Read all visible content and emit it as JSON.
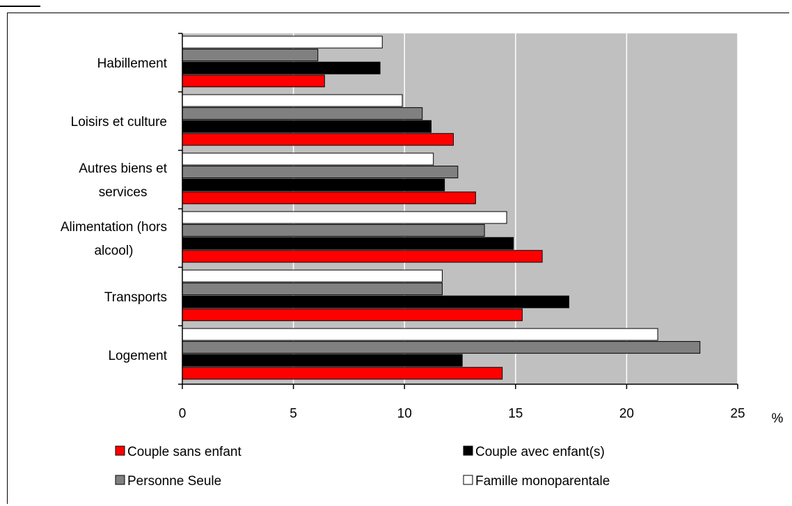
{
  "chart_data": {
    "type": "bar",
    "orientation": "horizontal",
    "categories": [
      "Habillement",
      "Loisirs et culture",
      "Autres biens et services",
      "Alimentation (hors alcool)",
      "Transports",
      "Logement"
    ],
    "category_lines": [
      [
        "Habillement"
      ],
      [
        "Loisirs et culture"
      ],
      [
        "Autres biens et",
        "services"
      ],
      [
        "Alimentation (hors",
        "alcool)"
      ],
      [
        "Transports"
      ],
      [
        "Logement"
      ]
    ],
    "series": [
      {
        "name": "Famille monoparentale",
        "color": "#ffffff",
        "values": [
          9.0,
          9.9,
          11.3,
          14.6,
          11.7,
          21.4
        ]
      },
      {
        "name": "Personne Seule",
        "color": "#808080",
        "values": [
          6.1,
          10.8,
          12.4,
          13.6,
          11.7,
          23.3
        ]
      },
      {
        "name": "Couple avec enfant(s)",
        "color": "#000000",
        "values": [
          8.9,
          11.2,
          11.8,
          14.9,
          17.4,
          12.6
        ]
      },
      {
        "name": "Couple sans enfant",
        "color": "#ff0000",
        "values": [
          6.4,
          12.2,
          13.2,
          16.2,
          15.3,
          14.4
        ]
      }
    ],
    "xlim": [
      0,
      25
    ],
    "xticks": [
      0,
      5,
      10,
      15,
      20,
      25
    ],
    "xunit": "%",
    "plot_background": "#c0c0c0",
    "gridlines": "vertical white",
    "legend_order": [
      "Couple sans enfant",
      "Couple avec enfant(s)",
      "Personne Seule",
      "Famille monoparentale"
    ],
    "legend_placement": "bottom"
  }
}
